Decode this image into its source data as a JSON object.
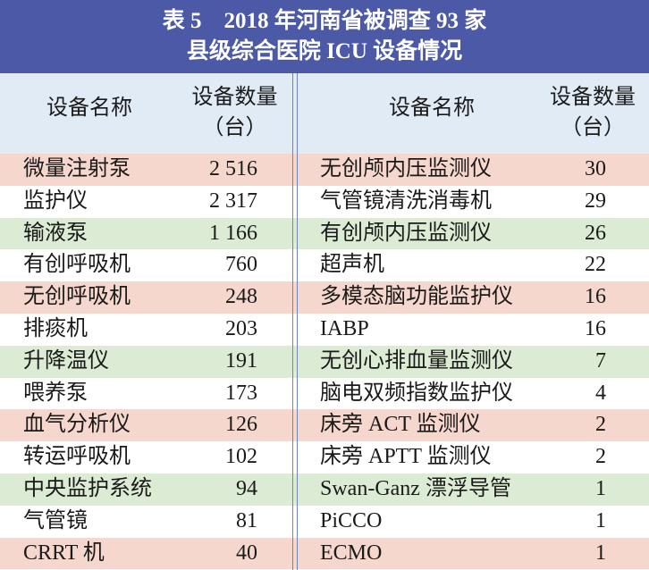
{
  "header": {
    "title": [
      "表 5　2018 年河南省被调查 93 家",
      "县级综合医院 ICU 设备情况"
    ]
  },
  "table": {
    "columns": [
      "设备名称",
      [
        "设备数量",
        "（台）"
      ]
    ],
    "left_rows": [
      [
        "微量注射泵",
        "2 516"
      ],
      [
        "监护仪",
        "2 317"
      ],
      [
        "输液泵",
        "1 166"
      ],
      [
        "有创呼吸机",
        "760"
      ],
      [
        "无创呼吸机",
        "248"
      ],
      [
        "排痰机",
        "203"
      ],
      [
        "升降温仪",
        "191"
      ],
      [
        "喂养泵",
        "173"
      ],
      [
        "血气分析仪",
        "126"
      ],
      [
        "转运呼吸机",
        "102"
      ],
      [
        "中央监护系统",
        "94"
      ],
      [
        "气管镜",
        "81"
      ],
      [
        "CRRT 机",
        "40"
      ]
    ],
    "right_rows": [
      [
        "无创颅内压监测仪",
        "30"
      ],
      [
        "气管镜清洗消毒机",
        "29"
      ],
      [
        "有创颅内压监测仪",
        "26"
      ],
      [
        "超声机",
        "22"
      ],
      [
        "多模态脑功能监护仪",
        "16"
      ],
      [
        "IABP",
        "16"
      ],
      [
        "无创心排血量监测仪",
        "7"
      ],
      [
        "脑电双频指数监护仪",
        "4"
      ],
      [
        "床旁 ACT 监测仪",
        "2"
      ],
      [
        "床旁 APTT 监测仪",
        "2"
      ],
      [
        "Swan-Ganz 漂浮导管",
        "1"
      ],
      [
        "PiCCO",
        "1"
      ],
      [
        "ECMO",
        "1"
      ]
    ]
  }
}
